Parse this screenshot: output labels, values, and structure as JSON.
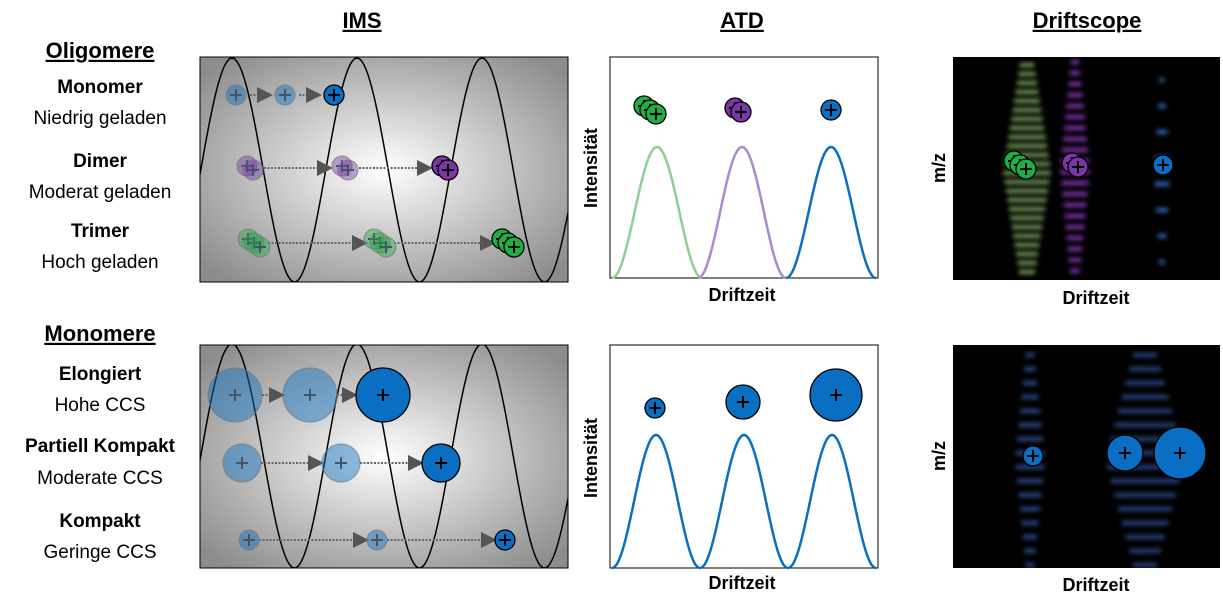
{
  "headers": {
    "ims": "IMS",
    "atd": "ATD",
    "driftscope": "Driftscope"
  },
  "sections": [
    {
      "title": "Oligomere",
      "rows": [
        {
          "label": "Monomer",
          "detail": "Niedrig geladen"
        },
        {
          "label": "Dimer",
          "detail": "Moderat geladen"
        },
        {
          "label": "Trimer",
          "detail": "Hoch geladen"
        }
      ]
    },
    {
      "title": "Monomere",
      "rows": [
        {
          "label": "Elongiert",
          "detail": "Hohe CCS"
        },
        {
          "label": "Partiell Kompakt",
          "detail": "Moderate CCS"
        },
        {
          "label": "Kompakt",
          "detail": "Geringe CCS"
        }
      ]
    }
  ],
  "atd_panels": [
    {
      "y_label": "Intensität",
      "x_label": "Driftzeit"
    },
    {
      "y_label": "Intensität",
      "x_label": "Driftzeit"
    }
  ],
  "driftscope_panels": [
    {
      "y_label": "m/z",
      "x_label": "Driftzeit"
    },
    {
      "y_label": "m/z",
      "x_label": "Driftzeit"
    }
  ]
}
